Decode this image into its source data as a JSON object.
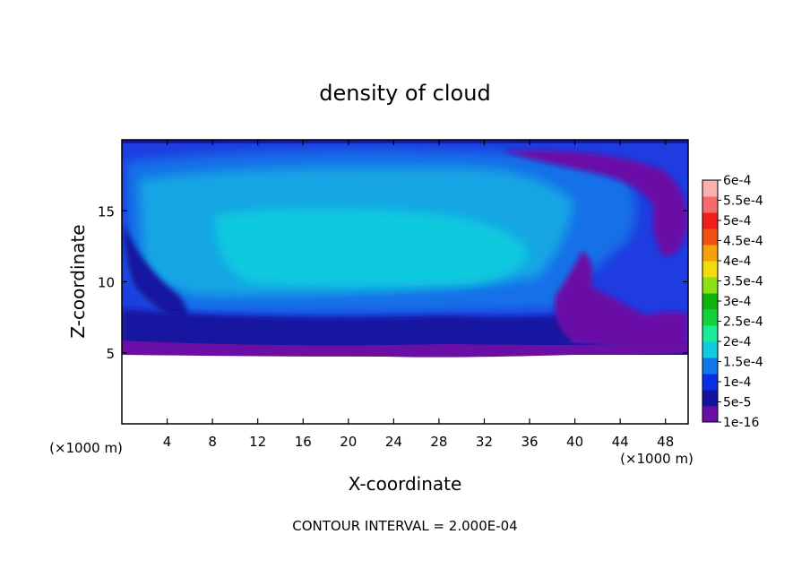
{
  "chart_data": {
    "type": "heatmap",
    "title": "density of cloud",
    "xlabel": "X-coordinate",
    "ylabel": "Z-coordinate",
    "x_unit_label": "(×1000 m)",
    "x_ticks": [
      4,
      8,
      12,
      16,
      20,
      24,
      28,
      32,
      36,
      40,
      44,
      48
    ],
    "y_ticks": [
      5,
      10,
      15
    ],
    "xlim": [
      0,
      50
    ],
    "ylim": [
      0,
      20
    ],
    "footer": "CONTOUR INTERVAL = 2.000E-04",
    "colorbar": {
      "labels": [
        "1e-16",
        "5e-5",
        "1e-4",
        "1.5e-4",
        "2e-4",
        "2.5e-4",
        "3e-4",
        "3.5e-4",
        "4e-4",
        "4.5e-4",
        "5e-4",
        "5.5e-4",
        "6e-4"
      ],
      "colors": [
        "#6a0ea6",
        "#1414a0",
        "#0a2ee8",
        "#0f78ea",
        "#10cadf",
        "#17ec98",
        "#14d23a",
        "#0fb40f",
        "#8ee016",
        "#f0de0a",
        "#f8a00a",
        "#f05010",
        "#f21e1e",
        "#f56a6a",
        "#fbb0b0"
      ]
    },
    "field": {
      "description_regions": [
        {
          "name": "main-cloud",
          "x": [
            2,
            36
          ],
          "z": [
            6.5,
            18
          ],
          "level": "1.5e-4 to 2e-4"
        },
        {
          "name": "cloud-base",
          "x": [
            0,
            50
          ],
          "z": [
            5,
            7
          ],
          "level": "5e-5 to 1e-4"
        },
        {
          "name": "upper-edge",
          "x": [
            0,
            50
          ],
          "z": [
            18,
            20
          ],
          "level": "1e-4"
        },
        {
          "name": "turbulent-right",
          "x": [
            38,
            50
          ],
          "z": [
            5,
            19
          ],
          "level": "1e-16 to 1.5e-4"
        }
      ],
      "clear_below_z": 5
    }
  }
}
